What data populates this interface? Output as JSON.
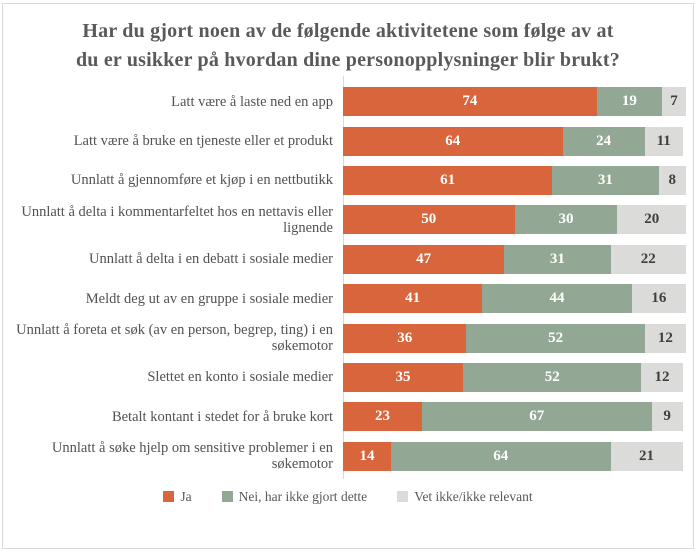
{
  "title": "Har du gjort noen av de følgende aktivitetene som følge av at du er usikker på hvordan dine personopplysninger blir brukt?",
  "colors": {
    "background": "#FFFFFF",
    "frame_border": "#D8D8D8",
    "axis_line": "#D9D9D9",
    "title_text": "#595959",
    "category_text": "#525252",
    "legend_text": "#595959"
  },
  "chart_data": {
    "type": "bar",
    "orientation": "horizontal",
    "stacked": true,
    "unit": "percent",
    "xlim": [
      0,
      100
    ],
    "value_labels": "inside-center",
    "legend_position": "bottom",
    "grid": false,
    "title": "Har du gjort noen av de følgende aktivitetene som følge av at du er usikker på hvordan dine personopplysninger blir brukt?",
    "categories": [
      "Latt være å laste ned en app",
      "Latt være å bruke en tjeneste eller et produkt",
      "Unnlatt å gjennomføre et kjøp i en nettbutikk",
      "Unnlatt å delta i kommentarfeltet hos en nettavis eller lignende",
      "Unnlatt å delta i en debatt i sosiale medier",
      "Meldt deg ut av en gruppe i sosiale medier",
      "Unnlatt å foreta et søk (av en person, begrep, ting) i en søkemotor",
      "Slettet en konto i sosiale medier",
      "Betalt kontant i stedet for å bruke kort",
      "Unnlatt å søke hjelp om sensitive problemer i en søkemotor"
    ],
    "series": [
      {
        "key": "ja",
        "name": "Ja",
        "color": "#D8653C",
        "label_color": "#FFFFFF",
        "values": [
          74,
          64,
          61,
          50,
          47,
          41,
          36,
          35,
          23,
          14
        ]
      },
      {
        "key": "nei-har-ikke-gjort-dette",
        "name": "Nei, har ikke gjort dette",
        "color": "#93A795",
        "label_color": "#FFFFFF",
        "values": [
          19,
          24,
          31,
          30,
          31,
          44,
          52,
          52,
          67,
          64
        ]
      },
      {
        "key": "vet-ikke-ikke-relevant",
        "name": "Vet ikke/ikke relevant",
        "color": "#DBDBD9",
        "label_color": "#3F3F3F",
        "values": [
          7,
          11,
          8,
          20,
          22,
          16,
          12,
          12,
          9,
          21
        ]
      }
    ]
  }
}
